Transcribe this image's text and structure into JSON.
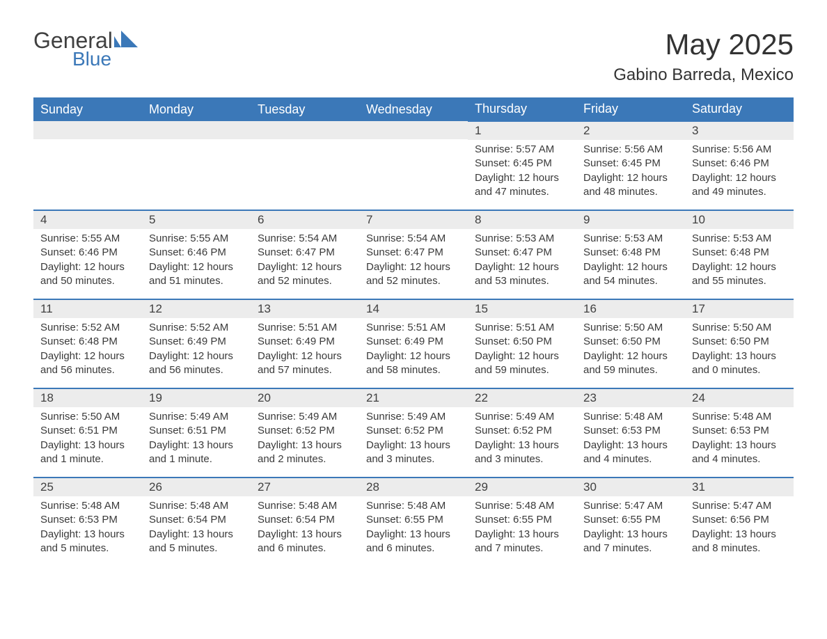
{
  "logo": {
    "general": "General",
    "blue": "Blue"
  },
  "title": "May 2025",
  "location": "Gabino Barreda, Mexico",
  "colors": {
    "header_bg": "#3b78b8",
    "header_text": "#ffffff",
    "daynum_bg": "#ececec",
    "cell_border": "#3b78b8",
    "body_text": "#3a3a3a",
    "logo_blue": "#3b78b8",
    "logo_gray": "#404040",
    "page_bg": "#ffffff"
  },
  "dayHeaders": [
    "Sunday",
    "Monday",
    "Tuesday",
    "Wednesday",
    "Thursday",
    "Friday",
    "Saturday"
  ],
  "weeks": [
    [
      null,
      null,
      null,
      null,
      {
        "n": "1",
        "sr": "Sunrise: 5:57 AM",
        "ss": "Sunset: 6:45 PM",
        "d1": "Daylight: 12 hours",
        "d2": "and 47 minutes."
      },
      {
        "n": "2",
        "sr": "Sunrise: 5:56 AM",
        "ss": "Sunset: 6:45 PM",
        "d1": "Daylight: 12 hours",
        "d2": "and 48 minutes."
      },
      {
        "n": "3",
        "sr": "Sunrise: 5:56 AM",
        "ss": "Sunset: 6:46 PM",
        "d1": "Daylight: 12 hours",
        "d2": "and 49 minutes."
      }
    ],
    [
      {
        "n": "4",
        "sr": "Sunrise: 5:55 AM",
        "ss": "Sunset: 6:46 PM",
        "d1": "Daylight: 12 hours",
        "d2": "and 50 minutes."
      },
      {
        "n": "5",
        "sr": "Sunrise: 5:55 AM",
        "ss": "Sunset: 6:46 PM",
        "d1": "Daylight: 12 hours",
        "d2": "and 51 minutes."
      },
      {
        "n": "6",
        "sr": "Sunrise: 5:54 AM",
        "ss": "Sunset: 6:47 PM",
        "d1": "Daylight: 12 hours",
        "d2": "and 52 minutes."
      },
      {
        "n": "7",
        "sr": "Sunrise: 5:54 AM",
        "ss": "Sunset: 6:47 PM",
        "d1": "Daylight: 12 hours",
        "d2": "and 52 minutes."
      },
      {
        "n": "8",
        "sr": "Sunrise: 5:53 AM",
        "ss": "Sunset: 6:47 PM",
        "d1": "Daylight: 12 hours",
        "d2": "and 53 minutes."
      },
      {
        "n": "9",
        "sr": "Sunrise: 5:53 AM",
        "ss": "Sunset: 6:48 PM",
        "d1": "Daylight: 12 hours",
        "d2": "and 54 minutes."
      },
      {
        "n": "10",
        "sr": "Sunrise: 5:53 AM",
        "ss": "Sunset: 6:48 PM",
        "d1": "Daylight: 12 hours",
        "d2": "and 55 minutes."
      }
    ],
    [
      {
        "n": "11",
        "sr": "Sunrise: 5:52 AM",
        "ss": "Sunset: 6:48 PM",
        "d1": "Daylight: 12 hours",
        "d2": "and 56 minutes."
      },
      {
        "n": "12",
        "sr": "Sunrise: 5:52 AM",
        "ss": "Sunset: 6:49 PM",
        "d1": "Daylight: 12 hours",
        "d2": "and 56 minutes."
      },
      {
        "n": "13",
        "sr": "Sunrise: 5:51 AM",
        "ss": "Sunset: 6:49 PM",
        "d1": "Daylight: 12 hours",
        "d2": "and 57 minutes."
      },
      {
        "n": "14",
        "sr": "Sunrise: 5:51 AM",
        "ss": "Sunset: 6:49 PM",
        "d1": "Daylight: 12 hours",
        "d2": "and 58 minutes."
      },
      {
        "n": "15",
        "sr": "Sunrise: 5:51 AM",
        "ss": "Sunset: 6:50 PM",
        "d1": "Daylight: 12 hours",
        "d2": "and 59 minutes."
      },
      {
        "n": "16",
        "sr": "Sunrise: 5:50 AM",
        "ss": "Sunset: 6:50 PM",
        "d1": "Daylight: 12 hours",
        "d2": "and 59 minutes."
      },
      {
        "n": "17",
        "sr": "Sunrise: 5:50 AM",
        "ss": "Sunset: 6:50 PM",
        "d1": "Daylight: 13 hours",
        "d2": "and 0 minutes."
      }
    ],
    [
      {
        "n": "18",
        "sr": "Sunrise: 5:50 AM",
        "ss": "Sunset: 6:51 PM",
        "d1": "Daylight: 13 hours",
        "d2": "and 1 minute."
      },
      {
        "n": "19",
        "sr": "Sunrise: 5:49 AM",
        "ss": "Sunset: 6:51 PM",
        "d1": "Daylight: 13 hours",
        "d2": "and 1 minute."
      },
      {
        "n": "20",
        "sr": "Sunrise: 5:49 AM",
        "ss": "Sunset: 6:52 PM",
        "d1": "Daylight: 13 hours",
        "d2": "and 2 minutes."
      },
      {
        "n": "21",
        "sr": "Sunrise: 5:49 AM",
        "ss": "Sunset: 6:52 PM",
        "d1": "Daylight: 13 hours",
        "d2": "and 3 minutes."
      },
      {
        "n": "22",
        "sr": "Sunrise: 5:49 AM",
        "ss": "Sunset: 6:52 PM",
        "d1": "Daylight: 13 hours",
        "d2": "and 3 minutes."
      },
      {
        "n": "23",
        "sr": "Sunrise: 5:48 AM",
        "ss": "Sunset: 6:53 PM",
        "d1": "Daylight: 13 hours",
        "d2": "and 4 minutes."
      },
      {
        "n": "24",
        "sr": "Sunrise: 5:48 AM",
        "ss": "Sunset: 6:53 PM",
        "d1": "Daylight: 13 hours",
        "d2": "and 4 minutes."
      }
    ],
    [
      {
        "n": "25",
        "sr": "Sunrise: 5:48 AM",
        "ss": "Sunset: 6:53 PM",
        "d1": "Daylight: 13 hours",
        "d2": "and 5 minutes."
      },
      {
        "n": "26",
        "sr": "Sunrise: 5:48 AM",
        "ss": "Sunset: 6:54 PM",
        "d1": "Daylight: 13 hours",
        "d2": "and 5 minutes."
      },
      {
        "n": "27",
        "sr": "Sunrise: 5:48 AM",
        "ss": "Sunset: 6:54 PM",
        "d1": "Daylight: 13 hours",
        "d2": "and 6 minutes."
      },
      {
        "n": "28",
        "sr": "Sunrise: 5:48 AM",
        "ss": "Sunset: 6:55 PM",
        "d1": "Daylight: 13 hours",
        "d2": "and 6 minutes."
      },
      {
        "n": "29",
        "sr": "Sunrise: 5:48 AM",
        "ss": "Sunset: 6:55 PM",
        "d1": "Daylight: 13 hours",
        "d2": "and 7 minutes."
      },
      {
        "n": "30",
        "sr": "Sunrise: 5:47 AM",
        "ss": "Sunset: 6:55 PM",
        "d1": "Daylight: 13 hours",
        "d2": "and 7 minutes."
      },
      {
        "n": "31",
        "sr": "Sunrise: 5:47 AM",
        "ss": "Sunset: 6:56 PM",
        "d1": "Daylight: 13 hours",
        "d2": "and 8 minutes."
      }
    ]
  ]
}
